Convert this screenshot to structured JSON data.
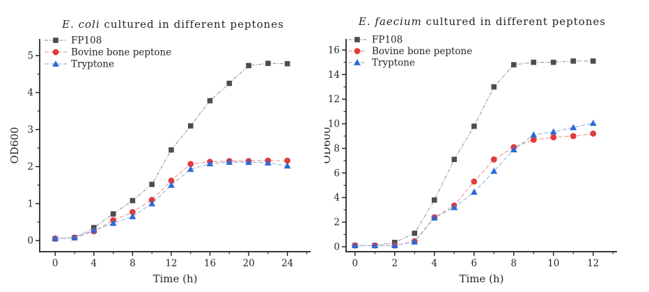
{
  "page": {
    "background": "#ffffff",
    "text_color": "#262626"
  },
  "chart_data": [
    {
      "type": "line",
      "title_em": "E. coli",
      "title_rest": " cultured in different peptones",
      "xlabel": "Time (h)",
      "ylabel": "OD600",
      "grid": false,
      "legend_position": "top-left-inside",
      "xlim": [
        -1.6,
        26.4
      ],
      "ylim": [
        -0.3,
        5.45
      ],
      "x_major_ticks": [
        0,
        4,
        8,
        12,
        16,
        20,
        24
      ],
      "x_minor_ticks": [
        2,
        6,
        10,
        14,
        18,
        22,
        26
      ],
      "y_major_ticks": [
        0,
        1,
        2,
        3,
        4,
        5
      ],
      "y_minor_ticks": [
        0.5,
        1.5,
        2.5,
        3.5,
        4.5
      ],
      "x": [
        0,
        2,
        4,
        6,
        8,
        10,
        12,
        14,
        16,
        18,
        20,
        22,
        24
      ],
      "series": [
        {
          "name": "FP108",
          "marker": "square",
          "color": "#4d4d4d",
          "line_color": "#9e9e9e",
          "line_dash": "5 2 1.5 2",
          "values": [
            0.05,
            0.08,
            0.35,
            0.72,
            1.08,
            1.52,
            2.45,
            3.1,
            3.78,
            4.25,
            4.73,
            4.79,
            4.78
          ]
        },
        {
          "name": "Bovine bone peptone",
          "marker": "circle",
          "color": "#e23b3c",
          "line_color": "#ed9a9a",
          "line_dash": "6 3",
          "values": [
            0.05,
            0.08,
            0.25,
            0.55,
            0.77,
            1.1,
            1.62,
            2.07,
            2.13,
            2.15,
            2.15,
            2.16,
            2.16
          ]
        },
        {
          "name": "Tryptone",
          "marker": "triangle",
          "color": "#2b6bd5",
          "line_color": "#8fb6e6",
          "line_dash": "6 3",
          "values": [
            0.06,
            0.08,
            0.28,
            0.47,
            0.65,
            1.0,
            1.5,
            1.93,
            2.08,
            2.12,
            2.12,
            2.1,
            2.02
          ]
        }
      ]
    },
    {
      "type": "line",
      "title_em": "E. faecium",
      "title_rest": " cultured in different peptones",
      "xlabel": "Time (h)",
      "ylabel": "OD600",
      "grid": false,
      "legend_position": "top-left-inside",
      "xlim": [
        -0.45,
        13.2
      ],
      "ylim": [
        -0.4,
        16.9
      ],
      "x_major_ticks": [
        0,
        2,
        4,
        6,
        8,
        10,
        12
      ],
      "x_minor_ticks": [
        1,
        3,
        5,
        7,
        9,
        11,
        13
      ],
      "y_major_ticks": [
        0,
        2,
        4,
        6,
        8,
        10,
        12,
        14,
        16
      ],
      "y_minor_ticks": [
        1,
        3,
        5,
        7,
        9,
        11,
        13,
        15
      ],
      "x": [
        0,
        1,
        2,
        3,
        4,
        5,
        6,
        7,
        8,
        9,
        10,
        11,
        12
      ],
      "series": [
        {
          "name": "FP108",
          "marker": "square",
          "color": "#4d4d4d",
          "line_color": "#9e9e9e",
          "line_dash": "5 2 1.5 2",
          "values": [
            0.1,
            0.1,
            0.35,
            1.1,
            3.8,
            7.1,
            9.8,
            13.0,
            14.8,
            15.0,
            15.0,
            15.1,
            15.1
          ]
        },
        {
          "name": "Bovine bone peptone",
          "marker": "circle",
          "color": "#e23b3c",
          "line_color": "#ed9a9a",
          "line_dash": "6 3",
          "values": [
            0.1,
            0.1,
            0.1,
            0.45,
            2.4,
            3.35,
            5.3,
            7.1,
            8.1,
            8.7,
            8.9,
            9.0,
            9.2
          ]
        },
        {
          "name": "Tryptone",
          "marker": "triangle",
          "color": "#2b6bd5",
          "line_color": "#8fb6e6",
          "line_dash": "6 3",
          "values": [
            0.1,
            0.1,
            0.1,
            0.4,
            2.35,
            3.2,
            4.45,
            6.15,
            7.9,
            9.1,
            9.35,
            9.7,
            10.05
          ]
        }
      ]
    }
  ]
}
